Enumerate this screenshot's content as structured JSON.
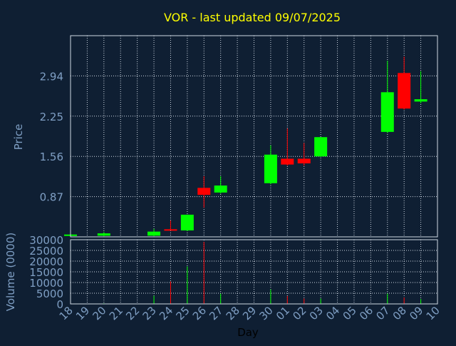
{
  "colors": {
    "background": "#0f1f33",
    "title": "#ffff00",
    "axis_text": "#7f9fc4",
    "grid": "#cfd8e3",
    "frame": "#cfd8e3",
    "up": "#00ff00",
    "down": "#ff0000",
    "xlabel_text": "#000000"
  },
  "chart_data": {
    "type": "candlestick",
    "title": "VOR - last updated 09/07/2025",
    "price": {
      "ylabel": "Price",
      "yticks": [
        0.87,
        1.56,
        2.25,
        2.94
      ],
      "ytick_labels": [
        "0.87",
        "1.56",
        "2.25",
        "2.94"
      ],
      "ylim": [
        0.18,
        3.63
      ],
      "grid": true
    },
    "volume": {
      "ylabel": "Volume (0000)",
      "yticks": [
        0,
        5000,
        10000,
        15000,
        20000,
        25000,
        30000
      ],
      "ytick_labels": [
        "0",
        "5000",
        "10000",
        "15000",
        "20000",
        "25000",
        "30000"
      ],
      "ylim": [
        0,
        30000
      ],
      "grid": true
    },
    "xlabel": "Day",
    "xtick_labels": [
      "18",
      "19",
      "20",
      "21",
      "22",
      "23",
      "24",
      "25",
      "26",
      "27",
      "28",
      "29",
      "30",
      "01",
      "02",
      "03",
      "04",
      "05",
      "06",
      "07",
      "08",
      "09",
      "10"
    ],
    "candles": [
      {
        "day": "18",
        "open": 0.2,
        "close": 0.22,
        "high": 0.23,
        "low": 0.19,
        "volume": 100
      },
      {
        "day": "20",
        "open": 0.2,
        "close": 0.24,
        "high": 0.26,
        "low": 0.19,
        "volume": 300
      },
      {
        "day": "23",
        "open": 0.2,
        "close": 0.27,
        "high": 0.32,
        "low": 0.19,
        "volume": 3800
      },
      {
        "day": "24",
        "open": 0.31,
        "close": 0.3,
        "high": 0.46,
        "low": 0.29,
        "volume": 10500
      },
      {
        "day": "25",
        "open": 0.29,
        "close": 0.56,
        "high": 0.56,
        "low": 0.28,
        "volume": 17500
      },
      {
        "day": "26",
        "open": 1.02,
        "close": 0.9,
        "high": 1.22,
        "low": 0.68,
        "volume": 29000
      },
      {
        "day": "27",
        "open": 0.94,
        "close": 1.06,
        "high": 1.22,
        "low": 0.92,
        "volume": 4800
      },
      {
        "day": "30",
        "open": 1.1,
        "close": 1.59,
        "high": 1.75,
        "low": 1.08,
        "volume": 6800
      },
      {
        "day": "01",
        "open": 1.52,
        "close": 1.42,
        "high": 2.04,
        "low": 1.4,
        "volume": 3700
      },
      {
        "day": "02",
        "open": 1.52,
        "close": 1.44,
        "high": 1.79,
        "low": 1.4,
        "volume": 2500
      },
      {
        "day": "03",
        "open": 1.56,
        "close": 1.89,
        "high": 1.89,
        "low": 1.55,
        "volume": 2500
      },
      {
        "day": "07",
        "open": 1.98,
        "close": 2.66,
        "high": 3.2,
        "low": 1.96,
        "volume": 4800
      },
      {
        "day": "08",
        "open": 2.99,
        "close": 2.38,
        "high": 3.27,
        "low": 2.36,
        "volume": 3000
      },
      {
        "day": "09",
        "open": 2.5,
        "close": 2.54,
        "high": 3.02,
        "low": 2.47,
        "volume": 2300
      }
    ]
  }
}
